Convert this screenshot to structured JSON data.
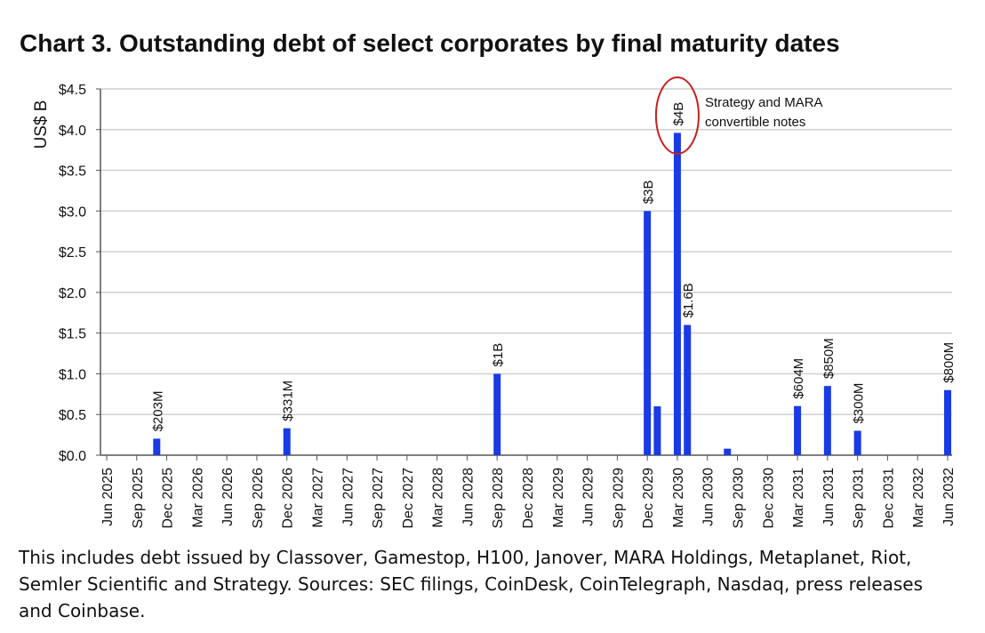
{
  "chart_data": {
    "type": "bar",
    "title": "Chart 3. Outstanding debt of select corporates by final maturity dates",
    "y_label": "US$ B",
    "annotation": [
      "Strategy and MARA",
      "convertible notes"
    ],
    "note": "This includes debt issued by Classover, Gamestop, H100, Janover, MARA Holdings, Metaplanet, Riot, Semler Scientific and Strategy. Sources: SEC filings, CoinDesk, CoinTelegraph, Nasdaq, press releases and Coinbase.",
    "color": "#1a3ae6",
    "x": [
      "2025-11",
      "2026-12",
      "2028-09",
      "2029-12",
      "2030-01",
      "2030-03",
      "2030-04",
      "2030-08",
      "2031-03",
      "2031-06",
      "2031-09",
      "2032-06"
    ],
    "values": [
      0.203,
      0.331,
      1,
      3,
      0.6,
      3.96,
      1.6,
      0.08,
      0.604,
      0.85,
      0.3,
      0.8
    ],
    "value_labels": [
      "$203M",
      "$331M",
      "$1B",
      "$3B",
      null,
      "$4B",
      "$1.6B",
      null,
      "$604M",
      "$850M",
      "$300M",
      "$800M"
    ],
    "xlim": [
      "2025-06",
      "2032-06"
    ],
    "xticks": [
      {
        "value": "2025-06",
        "label": "Jun 2025"
      },
      {
        "value": "2025-09",
        "label": "Sep 2025"
      },
      {
        "value": "2025-12",
        "label": "Dec 2025"
      },
      {
        "value": "2026-03",
        "label": "Mar 2026"
      },
      {
        "value": "2026-06",
        "label": "Jun 2026"
      },
      {
        "value": "2026-09",
        "label": "Sep 2026"
      },
      {
        "value": "2026-12",
        "label": "Dec 2026"
      },
      {
        "value": "2027-03",
        "label": "Mar 2027"
      },
      {
        "value": "2027-06",
        "label": "Jun 2027"
      },
      {
        "value": "2027-09",
        "label": "Sep 2027"
      },
      {
        "value": "2027-12",
        "label": "Dec 2027"
      },
      {
        "value": "2028-03",
        "label": "Mar 2028"
      },
      {
        "value": "2028-06",
        "label": "Jun 2028"
      },
      {
        "value": "2028-09",
        "label": "Sep 2028"
      },
      {
        "value": "2028-12",
        "label": "Dec 2028"
      },
      {
        "value": "2029-03",
        "label": "Mar 2029"
      },
      {
        "value": "2029-06",
        "label": "Jun 2029"
      },
      {
        "value": "2029-09",
        "label": "Sep 2029"
      },
      {
        "value": "2029-12",
        "label": "Dec 2029"
      },
      {
        "value": "2030-03",
        "label": "Mar 2030"
      },
      {
        "value": "2030-06",
        "label": "Jun 2030"
      },
      {
        "value": "2030-09",
        "label": "Sep 2030"
      },
      {
        "value": "2030-12",
        "label": "Dec 2030"
      },
      {
        "value": "2031-03",
        "label": "Mar 2031"
      },
      {
        "value": "2031-06",
        "label": "Jun 2031"
      },
      {
        "value": "2031-09",
        "label": "Sep 2031"
      },
      {
        "value": "2031-12",
        "label": "Dec 2031"
      },
      {
        "value": "2032-03",
        "label": "Mar 2032"
      },
      {
        "value": "2032-06",
        "label": "Jun 2032"
      }
    ],
    "ylim": [
      0,
      4.5
    ],
    "yticks": [
      {
        "value": 0,
        "label": "$0.0"
      },
      {
        "value": 0.5,
        "label": "$0.5"
      },
      {
        "value": 1,
        "label": "$1.0"
      },
      {
        "value": 1.5,
        "label": "$1.5"
      },
      {
        "value": 2,
        "label": "$2.0"
      },
      {
        "value": 2.5,
        "label": "$2.5"
      },
      {
        "value": 3,
        "label": "$3.0"
      },
      {
        "value": 3.5,
        "label": "$3.5"
      },
      {
        "value": 4,
        "label": "$4.0"
      },
      {
        "value": 4.5,
        "label": "$4.5"
      }
    ],
    "grid": true
  }
}
